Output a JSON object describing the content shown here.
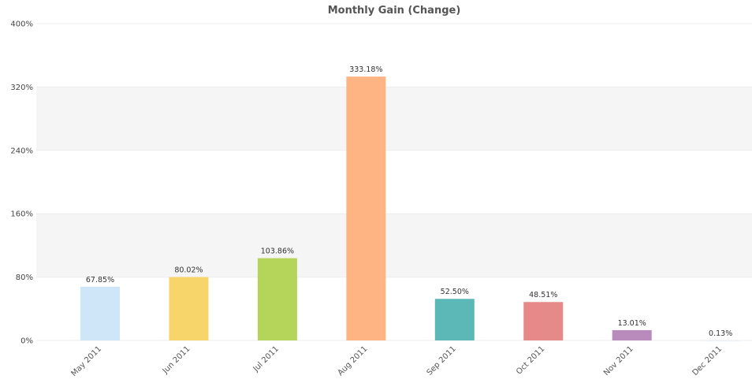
{
  "chart_data": {
    "type": "bar",
    "title": "Monthly Gain (Change)",
    "xlabel": "",
    "ylabel": "",
    "categories": [
      "May 2011",
      "Jun 2011",
      "Jul 2011",
      "Aug 2011",
      "Sep 2011",
      "Oct 2011",
      "Nov 2011",
      "Dec 2011"
    ],
    "values": [
      67.85,
      80.02,
      103.86,
      333.18,
      52.5,
      48.51,
      13.01,
      0.13
    ],
    "value_labels": [
      "67.85%",
      "80.02%",
      "103.86%",
      "333.18%",
      "52.50%",
      "48.51%",
      "13.01%",
      "0.13%"
    ],
    "colors": [
      "#cfe6f8",
      "#f8d56a",
      "#b5d45a",
      "#ffb583",
      "#5cb8b6",
      "#e58a88",
      "#b98bbc",
      "#d0e0f0"
    ],
    "ylim": [
      0,
      400
    ],
    "yticks": [
      0,
      80,
      160,
      240,
      320,
      400
    ],
    "ytick_labels": [
      "0%",
      "80%",
      "160%",
      "240%",
      "320%",
      "400%"
    ],
    "band_color": "#f5f5f5",
    "grid": true,
    "legend": "none"
  }
}
